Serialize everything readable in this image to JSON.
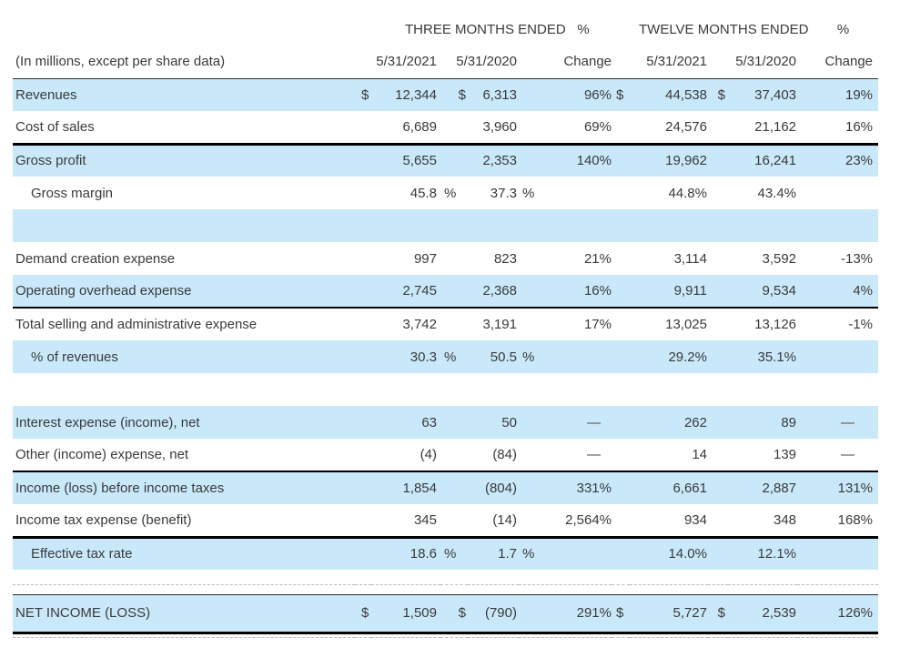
{
  "document": {
    "kind": "income-statement-table",
    "units_note": "(In millions, except per share data)"
  },
  "colors": {
    "row_highlight_blue": "#c9e9fb",
    "rule_black": "#000000",
    "text": "#3a3a3a"
  },
  "group_header": {
    "three_months": "THREE MONTHS ENDED",
    "pct_1": "%",
    "twelve_months": "TWELVE MONTHS ENDED",
    "pct_2": "%"
  },
  "column_header": {
    "label": "(In millions, except per share data)",
    "cells": [
      "5/31/2021",
      "5/31/2020",
      "Change",
      "5/31/2021",
      "5/31/2020",
      "Change"
    ]
  },
  "rows": [
    {
      "type": "money",
      "label": "Revenues",
      "bg": "blue",
      "cells": [
        "$",
        "12,344",
        "$",
        "6,313",
        "96%",
        "$",
        "44,538",
        "$",
        "37,403",
        "19%"
      ]
    },
    {
      "type": "plain",
      "label": "Cost of sales",
      "bg": "white",
      "border": "heavy",
      "cells": [
        "6,689",
        "3,960",
        "69%",
        "24,576",
        "21,162",
        "16%"
      ]
    },
    {
      "type": "plain",
      "label": "Gross profit",
      "bg": "blue",
      "cells": [
        "5,655",
        "2,353",
        "140%",
        "19,962",
        "16,241",
        "23%"
      ]
    },
    {
      "type": "rate",
      "label": "Gross margin",
      "indent": true,
      "bg": "white",
      "cells": [
        "45.8",
        "%",
        "37.3",
        "%",
        "44.8%",
        "43.4%"
      ]
    },
    {
      "type": "spacer",
      "bg": "blue",
      "height": 36
    },
    {
      "type": "plain",
      "label": "Demand creation expense",
      "bg": "white",
      "cells": [
        "997",
        "823",
        "21%",
        "3,114",
        "3,592",
        "-13%"
      ]
    },
    {
      "type": "plain",
      "label": "Operating overhead expense",
      "bg": "blue",
      "border": "mid",
      "cells": [
        "2,745",
        "2,368",
        "16%",
        "9,911",
        "9,534",
        "4%"
      ]
    },
    {
      "type": "plain",
      "label": "Total selling and administrative expense",
      "bg": "white",
      "cells": [
        "3,742",
        "3,191",
        "17%",
        "13,025",
        "13,126",
        "-1%"
      ]
    },
    {
      "type": "rate",
      "label": "% of revenues",
      "indent": true,
      "bg": "blue",
      "cells": [
        "30.3",
        "%",
        "50.5",
        "%",
        "29.2%",
        "35.1%"
      ]
    },
    {
      "type": "spacer",
      "bg": "white",
      "height": 36
    },
    {
      "type": "plain",
      "label": "Interest expense (income), net",
      "bg": "blue",
      "cells": [
        "63",
        "50",
        "—",
        "262",
        "89",
        "—"
      ]
    },
    {
      "type": "plain",
      "label": "Other (income) expense, net",
      "bg": "white",
      "border": "mid",
      "cells": [
        "(4)",
        "(84)",
        "—",
        "14",
        "139",
        "—"
      ]
    },
    {
      "type": "plain",
      "label": "Income (loss) before income taxes",
      "bg": "blue",
      "cells": [
        "1,854",
        "(804)",
        "331%",
        "6,661",
        "2,887",
        "131%"
      ]
    },
    {
      "type": "plain",
      "label": "Income tax expense (benefit)",
      "bg": "white",
      "border": "heavy",
      "cells": [
        "345",
        "(14)",
        "2,564%",
        "934",
        "348",
        "168%"
      ]
    },
    {
      "type": "rate",
      "label": "Effective tax rate",
      "indent": true,
      "bg": "blue",
      "cells": [
        "18.6",
        "%",
        "1.7",
        "%",
        "14.0%",
        "12.1%"
      ]
    },
    {
      "type": "spacer",
      "bg": "white",
      "height": 16,
      "border": "dash"
    },
    {
      "type": "spacer",
      "bg": "white",
      "height": 11,
      "border": "thin"
    },
    {
      "type": "money",
      "label": "NET INCOME (LOSS)",
      "bg": "blue",
      "tall": true,
      "border": "heavy",
      "cells": [
        "$",
        "1,509",
        "$",
        "(790)",
        "291%",
        "$",
        "5,727",
        "$",
        "2,539",
        "126%"
      ]
    },
    {
      "type": "spacer",
      "bg": "white",
      "height": 5,
      "border": "dash"
    }
  ]
}
